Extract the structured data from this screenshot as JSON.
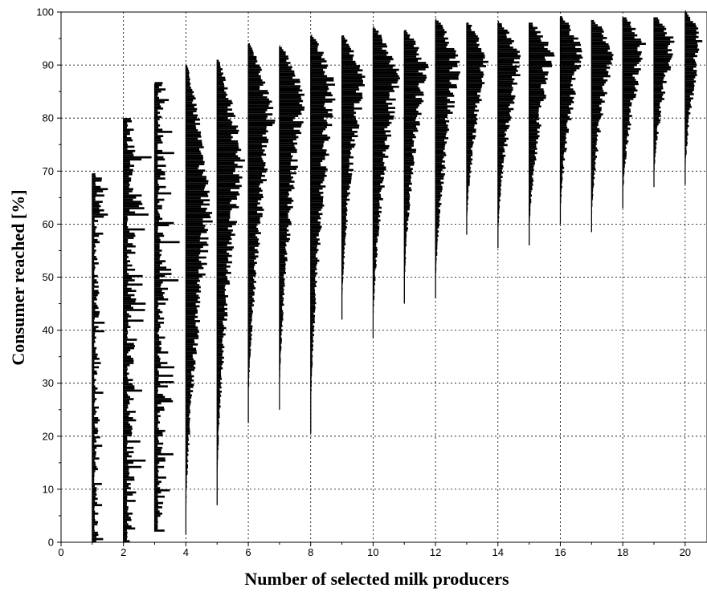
{
  "chart_data": {
    "type": "histogram-violin",
    "title": "",
    "xlabel": "Number of selected milk producers",
    "ylabel": "Consumer reached [%]",
    "xlim": [
      0,
      20.7
    ],
    "ylim": [
      0,
      100
    ],
    "x_ticks": [
      0,
      2,
      4,
      6,
      8,
      10,
      12,
      14,
      16,
      18,
      20
    ],
    "y_ticks": [
      0,
      10,
      20,
      30,
      40,
      50,
      60,
      70,
      80,
      90,
      100
    ],
    "grid": true,
    "distributions": [
      {
        "x": 1,
        "min": 0,
        "max": 69.5,
        "width": 0.5,
        "mode": 67.5
      },
      {
        "x": 2,
        "min": 0,
        "max": 80,
        "width": 0.9,
        "mode": 67.5
      },
      {
        "x": 3,
        "min": 2,
        "max": 86.5,
        "width": 0.8,
        "mode": 51.5
      },
      {
        "x": 4,
        "min": 1.5,
        "max": 90,
        "width": 0.9,
        "mode": 62
      },
      {
        "x": 5,
        "min": 7,
        "max": 91,
        "width": 0.9,
        "mode": 72
      },
      {
        "x": 6,
        "min": 22.5,
        "max": 94,
        "width": 0.9,
        "mode": 80
      },
      {
        "x": 7,
        "min": 25,
        "max": 93.5,
        "width": 0.9,
        "mode": 84
      },
      {
        "x": 8,
        "min": 20.5,
        "max": 95.5,
        "width": 0.85,
        "mode": 86
      },
      {
        "x": 9,
        "min": 42,
        "max": 95.5,
        "width": 0.8,
        "mode": 87
      },
      {
        "x": 10,
        "min": 38.5,
        "max": 97,
        "width": 0.9,
        "mode": 88
      },
      {
        "x": 11,
        "min": 45,
        "max": 96.5,
        "width": 0.8,
        "mode": 89.5
      },
      {
        "x": 12,
        "min": 46,
        "max": 98.5,
        "width": 0.85,
        "mode": 90
      },
      {
        "x": 13,
        "min": 58,
        "max": 98,
        "width": 0.75,
        "mode": 91
      },
      {
        "x": 14,
        "min": 55.5,
        "max": 98,
        "width": 0.85,
        "mode": 91.5
      },
      {
        "x": 15,
        "min": 56,
        "max": 98,
        "width": 0.85,
        "mode": 92
      },
      {
        "x": 16,
        "min": 60,
        "max": 99,
        "width": 0.8,
        "mode": 92.5
      },
      {
        "x": 17,
        "min": 58.5,
        "max": 98.5,
        "width": 0.8,
        "mode": 93
      },
      {
        "x": 18,
        "min": 63,
        "max": 99,
        "width": 0.8,
        "mode": 93.5
      },
      {
        "x": 19,
        "min": 67,
        "max": 99,
        "width": 0.75,
        "mode": 94
      },
      {
        "x": 20,
        "min": 67.5,
        "max": 100,
        "width": 0.6,
        "mode": 94.5
      }
    ]
  }
}
